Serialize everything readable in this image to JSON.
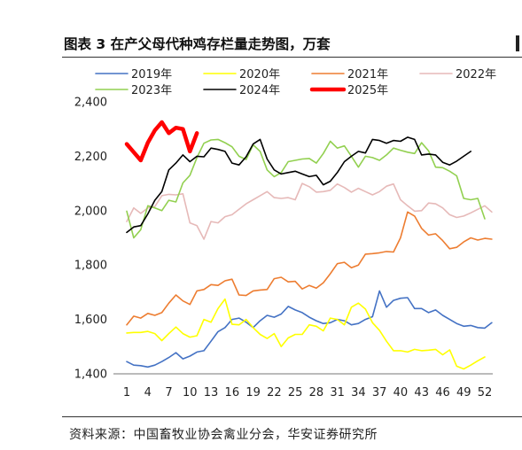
{
  "title": "图表 3  在产父母代种鸡存栏量走势图，万套",
  "source": "资料来源：中国畜牧业协会禽业分会，华安证券研究所",
  "chart_data": {
    "type": "line",
    "ylim": [
      1400,
      2400
    ],
    "yticks": [
      1400,
      1600,
      1800,
      2000,
      2200,
      2400
    ],
    "ytick_labels": [
      "1,400",
      "1,600",
      "1,800",
      "2,000",
      "2,200",
      "2,400"
    ],
    "xlim": [
      1,
      52
    ],
    "xticks": [
      1,
      4,
      7,
      10,
      13,
      16,
      19,
      22,
      25,
      28,
      31,
      34,
      37,
      40,
      43,
      46,
      49,
      52
    ],
    "xtick_labels": [
      "1",
      "4",
      "7",
      "10",
      "13",
      "16",
      "19",
      "22",
      "25",
      "28",
      "31",
      "34",
      "37",
      "40",
      "43",
      "46",
      "49",
      "52"
    ],
    "grid": false,
    "legend_position": "top",
    "series": [
      {
        "name": "2019年",
        "color": "#4472C4",
        "width": 1.6,
        "values": [
          1445,
          1432,
          1430,
          1425,
          1432,
          1445,
          1460,
          1478,
          1455,
          1465,
          1480,
          1485,
          1520,
          1555,
          1570,
          1600,
          1605,
          1590,
          1570,
          1595,
          1615,
          1608,
          1620,
          1648,
          1635,
          1625,
          1608,
          1595,
          1585,
          1588,
          1600,
          1595,
          1580,
          1585,
          1600,
          1610,
          1705,
          1645,
          1670,
          1678,
          1680,
          1640,
          1640,
          1625,
          1635,
          1615,
          1600,
          1585,
          1575,
          1578,
          1570,
          1568,
          1588
        ]
      },
      {
        "name": "2020年",
        "color": "#FFFF00",
        "width": 1.6,
        "values": [
          1550,
          1552,
          1552,
          1556,
          1548,
          1522,
          1548,
          1572,
          1548,
          1535,
          1540,
          1600,
          1590,
          1640,
          1675,
          1582,
          1580,
          1600,
          1570,
          1545,
          1530,
          1548,
          1500,
          1532,
          1545,
          1545,
          1580,
          1575,
          1558,
          1605,
          1600,
          1580,
          1645,
          1660,
          1638,
          1588,
          1560,
          1520,
          1485,
          1485,
          1480,
          1490,
          1485,
          1487,
          1490,
          1470,
          1488,
          1428,
          1418,
          1432,
          1448,
          1462
        ]
      },
      {
        "name": "2021年",
        "color": "#ED7D31",
        "width": 1.6,
        "values": [
          1580,
          1612,
          1605,
          1622,
          1615,
          1625,
          1660,
          1690,
          1668,
          1655,
          1705,
          1710,
          1728,
          1725,
          1742,
          1748,
          1690,
          1688,
          1705,
          1708,
          1710,
          1750,
          1755,
          1738,
          1740,
          1712,
          1725,
          1715,
          1735,
          1768,
          1805,
          1810,
          1790,
          1800,
          1840,
          1842,
          1845,
          1850,
          1848,
          1900,
          1995,
          1980,
          1935,
          1910,
          1915,
          1890,
          1860,
          1865,
          1885,
          1900,
          1892,
          1898,
          1895
        ]
      },
      {
        "name": "2022年",
        "color": "#E6B9B8",
        "width": 1.6,
        "values": [
          1960,
          2010,
          1990,
          2010,
          2015,
          2055,
          2060,
          2058,
          2062,
          1955,
          1945,
          1895,
          1960,
          1955,
          1978,
          1985,
          2005,
          2025,
          2040,
          2055,
          2070,
          2048,
          2045,
          2048,
          2040,
          2100,
          2088,
          2068,
          2070,
          2075,
          2098,
          2085,
          2068,
          2082,
          2070,
          2058,
          2070,
          2090,
          2098,
          2040,
          2018,
          1998,
          2000,
          2028,
          2025,
          2010,
          1985,
          1975,
          1980,
          1992,
          2005,
          2018,
          1995
        ]
      },
      {
        "name": "2023年",
        "color": "#92D050",
        "width": 1.6,
        "values": [
          1998,
          1900,
          1930,
          2018,
          2010,
          2000,
          2038,
          2032,
          2102,
          2130,
          2195,
          2248,
          2260,
          2262,
          2250,
          2235,
          2200,
          2188,
          2242,
          2218,
          2150,
          2125,
          2140,
          2180,
          2185,
          2190,
          2192,
          2175,
          2210,
          2255,
          2230,
          2238,
          2200,
          2160,
          2200,
          2195,
          2185,
          2205,
          2230,
          2222,
          2215,
          2210,
          2250,
          2220,
          2160,
          2158,
          2145,
          2128,
          2045,
          2040,
          2045,
          1970
        ]
      },
      {
        "name": "2024年",
        "color": "#000000",
        "width": 1.6,
        "values": [
          1920,
          1940,
          1945,
          1988,
          2038,
          2070,
          2150,
          2175,
          2205,
          2180,
          2200,
          2198,
          2230,
          2225,
          2218,
          2175,
          2168,
          2198,
          2245,
          2262,
          2190,
          2150,
          2135,
          2140,
          2145,
          2135,
          2125,
          2130,
          2095,
          2108,
          2140,
          2180,
          2200,
          2218,
          2212,
          2262,
          2258,
          2248,
          2258,
          2255,
          2270,
          2262,
          2205,
          2208,
          2205,
          2178,
          2168,
          2182,
          2200,
          2218
        ]
      },
      {
        "name": "2025年",
        "color": "#FF0000",
        "width": 4.5,
        "values": [
          2245,
          2215,
          2185,
          2250,
          2295,
          2325,
          2285,
          2305,
          2300,
          2218,
          2285
        ]
      }
    ]
  }
}
